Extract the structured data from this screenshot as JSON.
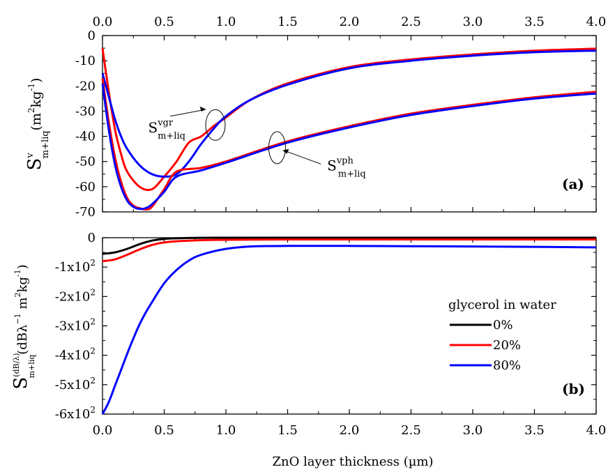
{
  "chart_data": [
    {
      "panel": "(a)",
      "type": "line",
      "ylabel_main": "S",
      "ylabel_sup": "v",
      "ylabel_sub": "m+liq",
      "ylabel_units_a": "(m",
      "ylabel_units_sup1": "2",
      "ylabel_units_b": "kg",
      "ylabel_units_sup2": "-1",
      "ylabel_units_c": ")",
      "xlim": [
        0,
        4
      ],
      "ylim": [
        -70,
        0
      ],
      "x_ticks": [
        "0.0",
        "0.5",
        "1.0",
        "1.5",
        "2.0",
        "2.5",
        "3.0",
        "3.5",
        "4.0"
      ],
      "y_ticks": [
        "0",
        "-10",
        "-20",
        "-30",
        "-40",
        "-50",
        "-60",
        "-70"
      ],
      "grid": false,
      "annotations": [
        {
          "id": "vgr",
          "main": "S",
          "sup": "vgr",
          "sub": "m+liq"
        },
        {
          "id": "vph",
          "main": "S",
          "sup": "vph",
          "sub": "m+liq"
        }
      ],
      "series": [
        {
          "color": "#ff0000",
          "group": "vgr",
          "x": [
            0,
            0.05,
            0.1,
            0.15,
            0.2,
            0.3,
            0.4,
            0.5,
            0.6,
            0.7,
            0.8,
            0.9,
            1.0,
            1.2,
            1.5,
            2.0,
            2.5,
            3.0,
            3.5,
            4.0
          ],
          "y": [
            -5,
            -22,
            -37,
            -47,
            -54,
            -60,
            -61,
            -56,
            -50,
            -42.5,
            -40,
            -36,
            -32.5,
            -25.5,
            -19,
            -12.5,
            -9.5,
            -7.5,
            -6,
            -5.2
          ]
        },
        {
          "color": "#0000ff",
          "group": "vgr",
          "x": [
            0,
            0.05,
            0.1,
            0.15,
            0.2,
            0.3,
            0.4,
            0.5,
            0.6,
            0.7,
            0.8,
            0.9,
            1.0,
            1.2,
            1.5,
            2.0,
            2.5,
            3.0,
            3.5,
            4.0
          ],
          "y": [
            -15,
            -24,
            -33,
            -40,
            -45,
            -51.5,
            -55,
            -56,
            -55,
            -50,
            -43,
            -37,
            -32,
            -25.5,
            -19.5,
            -13,
            -10,
            -8,
            -6.6,
            -6
          ]
        },
        {
          "color": "#ff0000",
          "group": "vph",
          "x": [
            0,
            0.05,
            0.1,
            0.15,
            0.2,
            0.25,
            0.3,
            0.35,
            0.4,
            0.5,
            0.6,
            0.8,
            1.0,
            1.5,
            2.0,
            2.5,
            3.0,
            3.5,
            4.0
          ],
          "y": [
            -17,
            -34,
            -48,
            -58,
            -64.5,
            -67.5,
            -68.5,
            -69,
            -68,
            -61,
            -54,
            -52.5,
            -50,
            -42,
            -36,
            -31,
            -27.5,
            -24.5,
            -22.3
          ]
        },
        {
          "color": "#0000ff",
          "group": "vph",
          "x": [
            0,
            0.05,
            0.1,
            0.15,
            0.2,
            0.25,
            0.3,
            0.35,
            0.4,
            0.5,
            0.6,
            0.8,
            1.0,
            1.5,
            2.0,
            2.5,
            3.0,
            3.5,
            4.0
          ],
          "y": [
            -19,
            -37,
            -51,
            -60,
            -65.5,
            -68,
            -68.8,
            -68.5,
            -67,
            -62,
            -56,
            -53.5,
            -50.5,
            -42.5,
            -36.5,
            -31.5,
            -28,
            -25,
            -23
          ]
        }
      ]
    },
    {
      "panel": "(b)",
      "type": "line",
      "ylabel_main": "S",
      "ylabel_sup": "(dB/λ)",
      "ylabel_sub": "m+liq",
      "ylabel_units_a": "(dBλ",
      "ylabel_units_sup1": "−1",
      "ylabel_units_b": " m",
      "ylabel_units_sup2": "2",
      "ylabel_units_c": "kg",
      "ylabel_units_sup3": "-1",
      "ylabel_units_d": ")",
      "xlabel": "ZnO layer thickness (µm)",
      "xlim": [
        0,
        4
      ],
      "ylim": [
        -600,
        0
      ],
      "x_ticks": [
        "0.0",
        "0.5",
        "1.0",
        "1.5",
        "2.0",
        "2.5",
        "3.0",
        "3.5",
        "4.0"
      ],
      "y_tick_values": [
        0,
        -100,
        -200,
        -300,
        -400,
        -500,
        -600
      ],
      "y_ticks": [
        {
          "mant": "0",
          "exp": ""
        },
        {
          "mant": "-1x10",
          "exp": "2"
        },
        {
          "mant": "-2x10",
          "exp": "2"
        },
        {
          "mant": "-3x10",
          "exp": "2"
        },
        {
          "mant": "-4x10",
          "exp": "2"
        },
        {
          "mant": "-5x10",
          "exp": "2"
        },
        {
          "mant": "-6x10",
          "exp": "2"
        }
      ],
      "grid": false,
      "legend_title": "glycerol in water",
      "legend_position": "right-middle",
      "series": [
        {
          "name": "0%",
          "color": "#000000",
          "x": [
            0,
            0.1,
            0.2,
            0.3,
            0.4,
            0.5,
            0.7,
            1.0,
            1.5,
            2.0,
            3.0,
            4.0
          ],
          "y": [
            -55,
            -50,
            -38,
            -22,
            -10,
            -4,
            -1,
            0,
            0,
            0,
            0,
            0
          ]
        },
        {
          "name": "20%",
          "color": "#ff0000",
          "x": [
            0,
            0.1,
            0.2,
            0.3,
            0.4,
            0.5,
            0.7,
            1.0,
            1.5,
            2.0,
            3.0,
            4.0
          ],
          "y": [
            -80,
            -74,
            -58,
            -40,
            -25,
            -16,
            -10,
            -7,
            -6,
            -6,
            -6,
            -6
          ]
        },
        {
          "name": "80%",
          "color": "#0000ff",
          "x": [
            0,
            0.05,
            0.1,
            0.15,
            0.2,
            0.25,
            0.3,
            0.35,
            0.4,
            0.5,
            0.6,
            0.7,
            0.8,
            1.0,
            1.2,
            1.5,
            2.0,
            2.5,
            3.0,
            3.5,
            4.0
          ],
          "y": [
            -600,
            -560,
            -505,
            -450,
            -395,
            -343,
            -295,
            -255,
            -220,
            -155,
            -110,
            -78,
            -58,
            -38,
            -30,
            -28,
            -28,
            -29,
            -30,
            -31,
            -33
          ]
        }
      ]
    }
  ]
}
